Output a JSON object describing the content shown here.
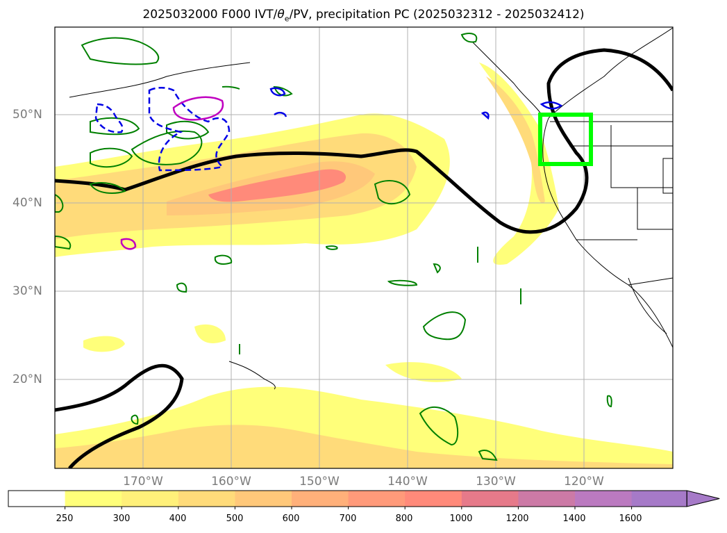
{
  "title": {
    "prefix": "2025032000 F000 IVT/",
    "theta": "θ",
    "theta_sub": "e",
    "suffix": "/PV, precipitation PC (2025032312 - 2025032412)"
  },
  "lat_labels": [
    "50°N",
    "40°N",
    "30°N",
    "20°N"
  ],
  "lon_labels": [
    "170°W",
    "160°W",
    "150°W",
    "140°W",
    "130°W",
    "120°W"
  ],
  "colorbar": {
    "ticks": [
      "250",
      "300",
      "400",
      "500",
      "600",
      "700",
      "800",
      "1000",
      "1200",
      "1400",
      "1600"
    ],
    "colors": [
      "#ffffff",
      "#ffff7a",
      "#fff07a",
      "#ffdb7a",
      "#ffc87a",
      "#ffb07a",
      "#ff9a7a",
      "#ff8a7a",
      "#e67a8a",
      "#cc7aa6",
      "#bb7ac0",
      "#a67ac8"
    ],
    "extend": "max"
  },
  "colors": {
    "ivt_low": "#ffff7a",
    "ivt_mid": "#ffdb7a",
    "ivt_high": "#ff8a7a",
    "pv_contour": "#000000",
    "precip_contour": "#008000",
    "theta_e_contour": "#0000e6",
    "magenta_contour": "#c000c0",
    "target_box": "#00ff00"
  }
}
